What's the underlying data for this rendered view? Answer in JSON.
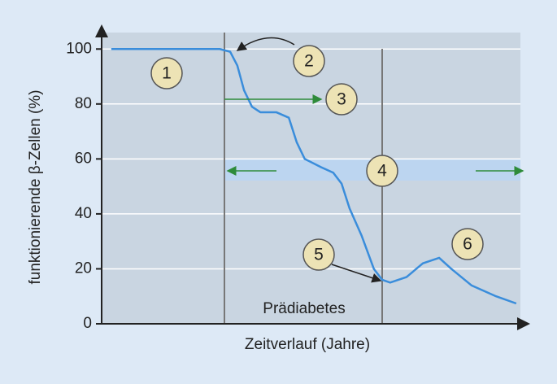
{
  "chart_data": {
    "type": "line",
    "y_label": "funktionierende β-Zellen (%)",
    "x_label": "Zeitverlauf (Jahre)",
    "x": [
      2.3,
      28.2,
      30.7,
      32.4,
      34,
      35.9,
      37.9,
      41.7,
      44.7,
      46.6,
      48.5,
      52.4,
      55.3,
      57.3,
      59.2,
      62.1,
      65,
      67,
      68.9,
      72.8,
      76.7,
      80.6,
      83.5,
      88.3,
      94.2,
      99
    ],
    "values": [
      100,
      100,
      99,
      94,
      85,
      79,
      77,
      77,
      75,
      66,
      60,
      57,
      55,
      51,
      42,
      32,
      20,
      16,
      15,
      17,
      22,
      24,
      20,
      14,
      10,
      7.4
    ],
    "color": "#3a8ddb",
    "xlim": [
      0,
      100
    ],
    "ylim": [
      0,
      106
    ],
    "yticks": [
      0,
      20,
      40,
      60,
      80,
      100
    ],
    "grid": true,
    "annotations": [
      "1",
      "2",
      "3",
      "4",
      "5",
      "6",
      "Prädiabetes"
    ]
  }
}
